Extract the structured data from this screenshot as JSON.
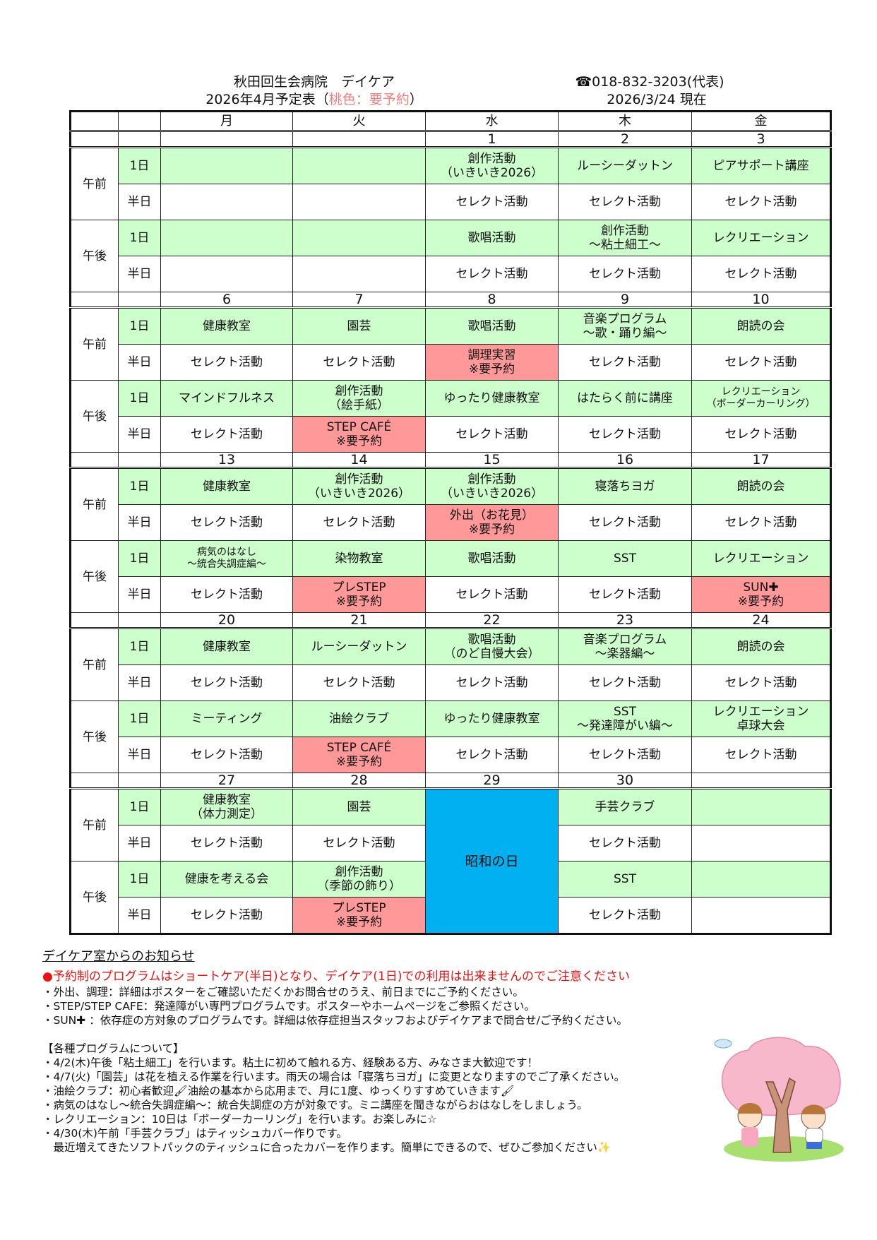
{
  "header": {
    "facility": "秋田回生会病院　デイケア",
    "schedule_title": "2026年4月予定表（",
    "legend_pink": "桃色：要予約",
    "schedule_title_end": "）",
    "phone": "☎018-832-3203(代表)",
    "as_of": "2026/3/24 現在"
  },
  "colors": {
    "full_day": "#ccffcc",
    "reservation": "#ff9999",
    "holiday": "#00b0f0"
  },
  "table": {
    "weekdays": [
      "月",
      "火",
      "水",
      "木",
      "金"
    ],
    "periods": [
      "午前",
      "午後"
    ],
    "slot_full": "1日",
    "slot_half": "半日",
    "weeks": [
      {
        "dates": [
          "",
          "",
          "1",
          "2",
          "3"
        ],
        "am_full": [
          {
            "t": ""
          },
          {
            "t": ""
          },
          {
            "t": "創作活動\n（いきいき2026）"
          },
          {
            "t": "ルーシーダットン"
          },
          {
            "t": "ピアサポート講座"
          }
        ],
        "am_half": [
          {
            "t": ""
          },
          {
            "t": ""
          },
          {
            "t": "セレクト活動"
          },
          {
            "t": "セレクト活動"
          },
          {
            "t": "セレクト活動"
          }
        ],
        "pm_full": [
          {
            "t": ""
          },
          {
            "t": ""
          },
          {
            "t": "歌唱活動"
          },
          {
            "t": "創作活動\n～粘土細工～"
          },
          {
            "t": "レクリエーション"
          }
        ],
        "pm_half": [
          {
            "t": ""
          },
          {
            "t": ""
          },
          {
            "t": "セレクト活動"
          },
          {
            "t": "セレクト活動"
          },
          {
            "t": "セレクト活動"
          }
        ]
      },
      {
        "dates": [
          "6",
          "7",
          "8",
          "9",
          "10"
        ],
        "am_full": [
          {
            "t": "健康教室"
          },
          {
            "t": "園芸"
          },
          {
            "t": "歌唱活動"
          },
          {
            "t": "音楽プログラム\n～歌・踊り編～"
          },
          {
            "t": "朗読の会"
          }
        ],
        "am_half": [
          {
            "t": "セレクト活動"
          },
          {
            "t": "セレクト活動"
          },
          {
            "t": "調理実習\n※要予約",
            "pink": true
          },
          {
            "t": "セレクト活動"
          },
          {
            "t": "セレクト活動"
          }
        ],
        "pm_full": [
          {
            "t": "マインドフルネス"
          },
          {
            "t": "創作活動\n（絵手紙）"
          },
          {
            "t": "ゆったり健康教室"
          },
          {
            "t": "はたらく前に講座"
          },
          {
            "t": "レクリエーション\n（ボーダーカーリング）",
            "small": true
          }
        ],
        "pm_half": [
          {
            "t": "セレクト活動"
          },
          {
            "t": "STEP CAFÉ\n※要予約",
            "pink": true
          },
          {
            "t": "セレクト活動"
          },
          {
            "t": "セレクト活動"
          },
          {
            "t": "セレクト活動"
          }
        ]
      },
      {
        "dates": [
          "13",
          "14",
          "15",
          "16",
          "17"
        ],
        "am_full": [
          {
            "t": "健康教室"
          },
          {
            "t": "創作活動\n（いきいき2026）"
          },
          {
            "t": "創作活動\n（いきいき2026）"
          },
          {
            "t": "寝落ちヨガ"
          },
          {
            "t": "朗読の会"
          }
        ],
        "am_half": [
          {
            "t": "セレクト活動"
          },
          {
            "t": "セレクト活動"
          },
          {
            "t": "外出（お花見）\n※要予約",
            "pink": true
          },
          {
            "t": "セレクト活動"
          },
          {
            "t": "セレクト活動"
          }
        ],
        "pm_full": [
          {
            "t": "病気のはなし\n～統合失調症編～",
            "small": true
          },
          {
            "t": "染物教室"
          },
          {
            "t": "歌唱活動"
          },
          {
            "t": "SST"
          },
          {
            "t": "レクリエーション"
          }
        ],
        "pm_half": [
          {
            "t": "セレクト活動"
          },
          {
            "t": "プレSTEP\n※要予約",
            "pink": true
          },
          {
            "t": "セレクト活動"
          },
          {
            "t": "セレクト活動"
          },
          {
            "t": "SUN✚\n※要予約",
            "pink": true
          }
        ]
      },
      {
        "dates": [
          "20",
          "21",
          "22",
          "23",
          "24"
        ],
        "am_full": [
          {
            "t": "健康教室"
          },
          {
            "t": "ルーシーダットン"
          },
          {
            "t": "歌唱活動\n（のど自慢大会）"
          },
          {
            "t": "音楽プログラム\n～楽器編～"
          },
          {
            "t": "朗読の会"
          }
        ],
        "am_half": [
          {
            "t": "セレクト活動"
          },
          {
            "t": "セレクト活動"
          },
          {
            "t": "セレクト活動"
          },
          {
            "t": "セレクト活動"
          },
          {
            "t": "セレクト活動"
          }
        ],
        "pm_full": [
          {
            "t": "ミーティング"
          },
          {
            "t": "油絵クラブ"
          },
          {
            "t": "ゆったり健康教室"
          },
          {
            "t": "SST\n～発達障がい編～"
          },
          {
            "t": "レクリエーション\n卓球大会"
          }
        ],
        "pm_half": [
          {
            "t": "セレクト活動"
          },
          {
            "t": "STEP CAFÉ\n※要予約",
            "pink": true
          },
          {
            "t": "セレクト活動"
          },
          {
            "t": "セレクト活動"
          },
          {
            "t": "セレクト活動"
          }
        ]
      },
      {
        "dates": [
          "27",
          "28",
          "29",
          "30",
          ""
        ],
        "holiday": {
          "col": 2,
          "t": "昭和の日"
        },
        "am_full": [
          {
            "t": "健康教室\n（体力測定）"
          },
          {
            "t": "園芸"
          },
          {
            "t": ""
          },
          {
            "t": "手芸クラブ"
          },
          {
            "t": ""
          }
        ],
        "am_half": [
          {
            "t": "セレクト活動"
          },
          {
            "t": "セレクト活動"
          },
          {
            "t": ""
          },
          {
            "t": "セレクト活動"
          },
          {
            "t": ""
          }
        ],
        "pm_full": [
          {
            "t": "健康を考える会"
          },
          {
            "t": "創作活動\n（季節の飾り）"
          },
          {
            "t": ""
          },
          {
            "t": "SST"
          },
          {
            "t": ""
          }
        ],
        "pm_half": [
          {
            "t": "セレクト活動"
          },
          {
            "t": "プレSTEP\n※要予約",
            "pink": true
          },
          {
            "t": ""
          },
          {
            "t": "セレクト活動"
          },
          {
            "t": ""
          }
        ]
      }
    ]
  },
  "notices": {
    "title": "デイケア室からのお知らせ",
    "warning": "●予約制のプログラムはショートケア(半日)となり、デイケア(1日)での利用は出来ませんのでご注意ください",
    "items": [
      "・外出、調理：詳細はポスターをご確認いただくかお問合せのうえ、前日までにご予約ください。",
      "・STEP/STEP CAFE：発達障がい専門プログラムです。ポスターやホームページをご参照ください。",
      "・SUN✚ ：依存症の方対象のプログラムです。詳細は依存症担当スタッフおよびデイケアまで問合せ/ご予約ください。"
    ],
    "programs_title": "【各種プログラムについて】",
    "programs": [
      "・4/2(木)午後「粘土細工」を行います。粘土に初めて触れる方、経験ある方、みなさま大歓迎です！",
      "・4/7(火)「園芸」は花を植える作業を行います。雨天の場合は「寝落ちヨガ」に変更となりますのでご了承ください。",
      "・油絵クラブ：初心者歓迎🖌油絵の基本から応用まで、月に1度、ゆっくりすすめていきます🖌",
      "・病気のはなし～統合失調症編～：統合失調症の方が対象です。ミニ講座を聞きながらおはなしをしましょう。",
      "・レクリエーション：10日は「ボーダーカーリング」を行います。お楽しみに☆",
      "・4/30(木)午前「手芸クラブ」はティッシュカバー作りです。",
      "　最近増えてきたソフトパックのティッシュに合ったカバーを作ります。簡単にできるので、ぜひご参加ください✨"
    ]
  },
  "illustration": {
    "icon": "cherry-blossom-tree-with-children"
  }
}
